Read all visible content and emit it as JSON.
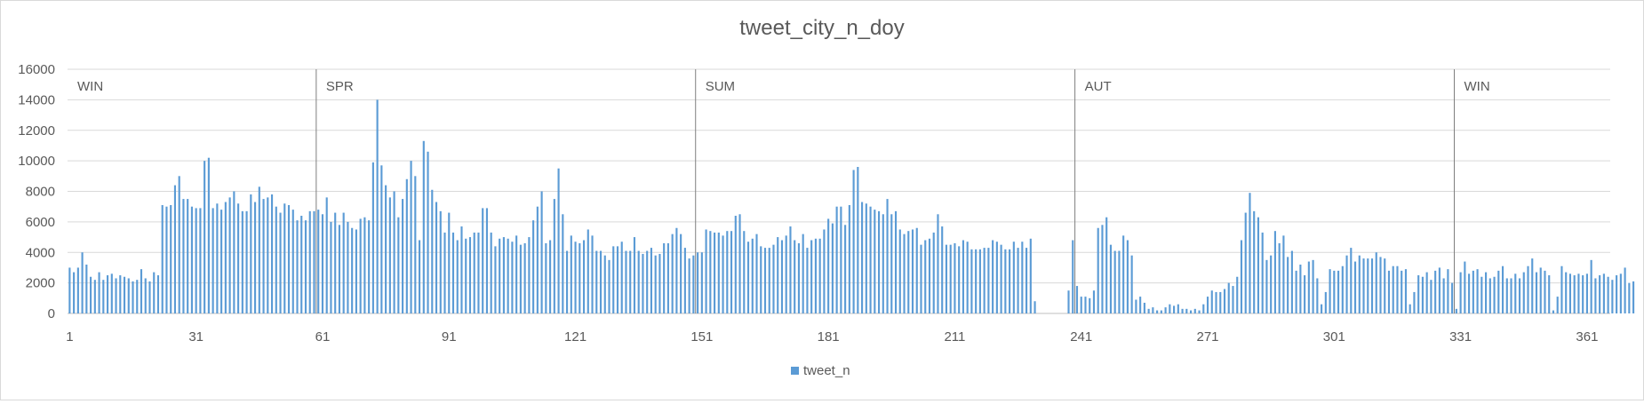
{
  "chart_data": {
    "type": "bar",
    "title": "tweet_city_n_doy",
    "xlabel": "",
    "ylabel": "",
    "ylim": [
      0,
      16000
    ],
    "y_ticks": [
      0,
      2000,
      4000,
      6000,
      8000,
      10000,
      12000,
      14000,
      16000
    ],
    "x_range": [
      1,
      366
    ],
    "x_ticks": [
      1,
      31,
      61,
      91,
      121,
      151,
      181,
      211,
      241,
      271,
      301,
      331,
      361
    ],
    "grid": true,
    "legend_position": "bottom",
    "bar_color": "#5b9bd5",
    "series": [
      {
        "name": "tweet_n",
        "values": [
          3000,
          2700,
          3000,
          4000,
          3200,
          2400,
          2200,
          2700,
          2200,
          2500,
          2600,
          2300,
          2500,
          2400,
          2300,
          2100,
          2200,
          2900,
          2300,
          2100,
          2700,
          2500,
          7100,
          7000,
          7100,
          8400,
          9000,
          7500,
          7500,
          7000,
          6900,
          6900,
          10000,
          10200,
          6900,
          7200,
          6800,
          7300,
          7600,
          8000,
          7200,
          6700,
          6700,
          7800,
          7300,
          8300,
          7500,
          7600,
          7800,
          7000,
          6600,
          7200,
          7100,
          6800,
          6100,
          6400,
          6100,
          6700,
          6700,
          6800,
          6500,
          7600,
          6000,
          6600,
          5800,
          6600,
          6000,
          5600,
          5500,
          6200,
          6300,
          6100,
          9900,
          14000,
          9700,
          8400,
          7600,
          8000,
          6300,
          7500,
          8800,
          10000,
          9000,
          4800,
          11300,
          10600,
          8100,
          7300,
          6700,
          5300,
          6600,
          5300,
          4800,
          5700,
          4900,
          5000,
          5300,
          5300,
          6900,
          6900,
          5300,
          4400,
          4900,
          5000,
          4900,
          4700,
          5100,
          4500,
          4600,
          5000,
          6100,
          7000,
          8000,
          4600,
          4800,
          7500,
          9500,
          6500,
          4100,
          5100,
          4700,
          4600,
          4800,
          5500,
          5100,
          4100,
          4100,
          3800,
          3500,
          4400,
          4400,
          4700,
          4100,
          4100,
          5000,
          4100,
          3900,
          4100,
          4300,
          3800,
          3900,
          4600,
          4600,
          5200,
          5600,
          5200,
          4300,
          3600,
          3800,
          4000,
          4000,
          5500,
          5400,
          5300,
          5300,
          5100,
          5400,
          5400,
          6400,
          6500,
          5400,
          4700,
          4900,
          5200,
          4400,
          4300,
          4300,
          4500,
          5000,
          4800,
          5100,
          5700,
          4800,
          4600,
          5200,
          4300,
          4800,
          4900,
          4900,
          5500,
          6200,
          5900,
          7000,
          7000,
          5800,
          7100,
          9400,
          9600,
          7300,
          7200,
          7000,
          6800,
          6700,
          6500,
          7500,
          6500,
          6700,
          5500,
          5200,
          5400,
          5500,
          5600,
          4500,
          4800,
          4900,
          5300,
          6500,
          5700,
          4500,
          4500,
          4600,
          4400,
          4800,
          4700,
          4200,
          4200,
          4200,
          4300,
          4300,
          4800,
          4700,
          4500,
          4200,
          4200,
          4700,
          4300,
          4700,
          4300,
          4900,
          800,
          0,
          0,
          0,
          0,
          0,
          0,
          0,
          1500,
          4800,
          1800,
          1100,
          1100,
          1000,
          1500,
          5600,
          5800,
          6300,
          4500,
          4100,
          4100,
          5100,
          4800,
          3800,
          900,
          1100,
          700,
          300,
          400,
          200,
          200,
          400,
          600,
          500,
          600,
          300,
          300,
          200,
          300,
          200,
          600,
          1100,
          1500,
          1400,
          1400,
          1600,
          2000,
          1800,
          2400,
          4800,
          6600,
          7900,
          6700,
          6300,
          5300,
          3500,
          3800,
          5400,
          4600,
          5100,
          3700,
          4100,
          2800,
          3200,
          2500,
          3400,
          3500,
          2300,
          600,
          1400,
          2900,
          2800,
          2800,
          3100,
          3800,
          4300,
          3400,
          3800,
          3600,
          3600,
          3600,
          4000,
          3700,
          3600,
          2800,
          3100,
          3100,
          2800,
          2900,
          600,
          1400,
          2500,
          2400,
          2700,
          2200,
          2800,
          3000,
          2300,
          2900,
          2000,
          300,
          2700,
          3400,
          2600,
          2800,
          2900,
          2400,
          2700,
          2300,
          2400,
          2800,
          3100,
          2300,
          2300,
          2600,
          2300,
          2700,
          3100,
          3600,
          2700,
          3000,
          2800,
          2500,
          200,
          1100,
          3100,
          2700,
          2600,
          2500,
          2600,
          2500,
          2600,
          3500,
          2300,
          2500,
          2600,
          2400,
          2200,
          2500,
          2600,
          3000,
          2000,
          2100
        ]
      }
    ],
    "season_bands": [
      {
        "label": "WIN",
        "start": 1
      },
      {
        "label": "SPR",
        "start": 60
      },
      {
        "label": "SUM",
        "start": 150
      },
      {
        "label": "AUT",
        "start": 240
      },
      {
        "label": "WIN",
        "start": 330
      }
    ]
  }
}
